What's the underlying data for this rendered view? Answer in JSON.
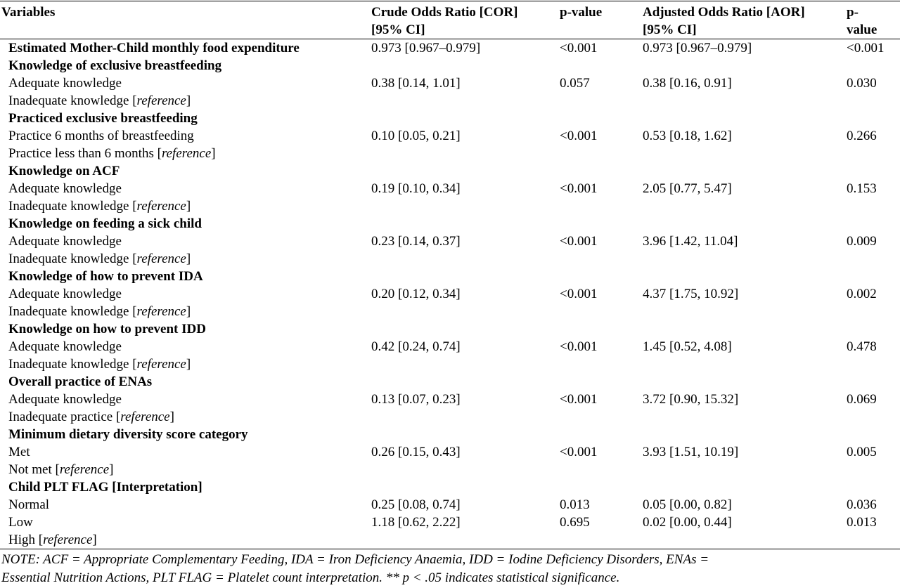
{
  "headers": {
    "variables": "Variables",
    "cor_1": "Crude Odds Ratio [COR]",
    "cor_2": "[95% CI]",
    "p1": "p-value",
    "aor_1": "Adjusted Odds Ratio [AOR]",
    "aor_2": "[95% CI]",
    "p2_1": "p-",
    "p2_2": "value"
  },
  "reference_word": "reference",
  "rows": [
    {
      "type": "group",
      "label": "Estimated Mother-Child monthly food expenditure",
      "cor": "0.973 [0.967–0.979]",
      "p1": "<0.001",
      "aor": " 0.973 [0.967–0.979]",
      "p2": "<0.001"
    },
    {
      "type": "group",
      "label": "Knowledge of exclusive breastfeeding",
      "cor": "",
      "p1": "",
      "aor": "",
      "p2": ""
    },
    {
      "type": "item",
      "label": "Adequate knowledge",
      "cor": "0.38 [0.14, 1.01]",
      "p1": "0.057",
      "aor": "0.38 [0.16, 0.91]",
      "p2": "0.030"
    },
    {
      "type": "ref",
      "label": "Inadequate knowledge",
      "cor": "",
      "p1": "",
      "aor": "",
      "p2": ""
    },
    {
      "type": "group",
      "label": "Practiced exclusive breastfeeding",
      "cor": "",
      "p1": "",
      "aor": "",
      "p2": ""
    },
    {
      "type": "item",
      "label": "Practice 6 months of breastfeeding",
      "cor": "0.10 [0.05, 0.21]",
      "p1": "<0.001",
      "aor": "0.53 [0.18, 1.62]",
      "p2": "0.266"
    },
    {
      "type": "ref",
      "label": "Practice less than 6 months",
      "cor": "",
      "p1": "",
      "aor": "",
      "p2": ""
    },
    {
      "type": "group",
      "label": "Knowledge on ACF",
      "cor": "",
      "p1": "",
      "aor": "",
      "p2": ""
    },
    {
      "type": "item",
      "label": "Adequate knowledge",
      "cor": "0.19 [0.10, 0.34]",
      "p1": "<0.001",
      "aor": "2.05 [0.77, 5.47]",
      "p2": "0.153"
    },
    {
      "type": "ref",
      "label": "Inadequate knowledge",
      "cor": "",
      "p1": "",
      "aor": "",
      "p2": ""
    },
    {
      "type": "group",
      "label": "Knowledge on feeding a sick child",
      "cor": "",
      "p1": "",
      "aor": "",
      "p2": ""
    },
    {
      "type": "item",
      "label": "Adequate knowledge",
      "cor": "0.23 [0.14, 0.37]",
      "p1": "<0.001",
      "aor": "3.96 [1.42, 11.04]",
      "p2": "0.009"
    },
    {
      "type": "ref",
      "label": "Inadequate knowledge",
      "cor": "",
      "p1": "",
      "aor": "",
      "p2": ""
    },
    {
      "type": "group",
      "label": "Knowledge of how to prevent IDA",
      "cor": "",
      "p1": "",
      "aor": "",
      "p2": ""
    },
    {
      "type": "item",
      "label": "Adequate knowledge",
      "cor": "0.20 [0.12, 0.34]",
      "p1": "<0.001",
      "aor": "4.37 [1.75, 10.92]",
      "p2": "0.002"
    },
    {
      "type": "ref",
      "label": "Inadequate knowledge",
      "cor": "",
      "p1": "",
      "aor": "",
      "p2": ""
    },
    {
      "type": "group",
      "label": "Knowledge on how to prevent IDD",
      "cor": "",
      "p1": "",
      "aor": "",
      "p2": ""
    },
    {
      "type": "item",
      "label": "Adequate knowledge",
      "cor": "0.42 [0.24, 0.74]",
      "p1": "<0.001",
      "aor": "1.45 [0.52, 4.08]",
      "p2": "0.478"
    },
    {
      "type": "ref",
      "label": "Inadequate knowledge",
      "cor": "",
      "p1": "",
      "aor": "",
      "p2": ""
    },
    {
      "type": "group",
      "label": "Overall practice of ENAs",
      "cor": "",
      "p1": "",
      "aor": "",
      "p2": ""
    },
    {
      "type": "item",
      "label": "Adequate knowledge",
      "cor": "0.13 [0.07, 0.23]",
      "p1": "<0.001",
      "aor": "3.72 [0.90, 15.32]",
      "p2": "0.069"
    },
    {
      "type": "ref",
      "label": "Inadequate practice",
      "cor": "",
      "p1": "",
      "aor": "",
      "p2": ""
    },
    {
      "type": "group",
      "label": "Minimum dietary diversity score category",
      "cor": "",
      "p1": "",
      "aor": "",
      "p2": ""
    },
    {
      "type": "item",
      "label": "Met",
      "cor": "0.26 [0.15, 0.43]",
      "p1": "<0.001",
      "aor": "3.93 [1.51, 10.19]",
      "p2": "0.005"
    },
    {
      "type": "ref",
      "label": "Not met",
      "cor": "",
      "p1": "",
      "aor": "",
      "p2": ""
    },
    {
      "type": "group",
      "label": "Child PLT FLAG [Interpretation]",
      "cor": "",
      "p1": "",
      "aor": "",
      "p2": ""
    },
    {
      "type": "item",
      "label": "Normal",
      "cor": "0.25 [0.08, 0.74]",
      "p1": "0.013",
      "aor": "0.05 [0.00, 0.82]",
      "p2": "0.036"
    },
    {
      "type": "item",
      "label": "Low",
      "cor": "1.18 [0.62, 2.22]",
      "p1": "0.695",
      "aor": "0.02 [0.00, 0.44]",
      "p2": "0.013"
    },
    {
      "type": "ref",
      "label": "High",
      "cor": "",
      "p1": "",
      "aor": "",
      "p2": ""
    }
  ],
  "note": {
    "line1": "NOTE: ACF = Appropriate Complementary Feeding, IDA = Iron Deficiency Anaemia, IDD = Iodine Deficiency Disorders, ENAs =",
    "line2": "Essential Nutrition Actions, PLT FLAG = Platelet count interpretation. ** p < .05 indicates statistical significance."
  }
}
